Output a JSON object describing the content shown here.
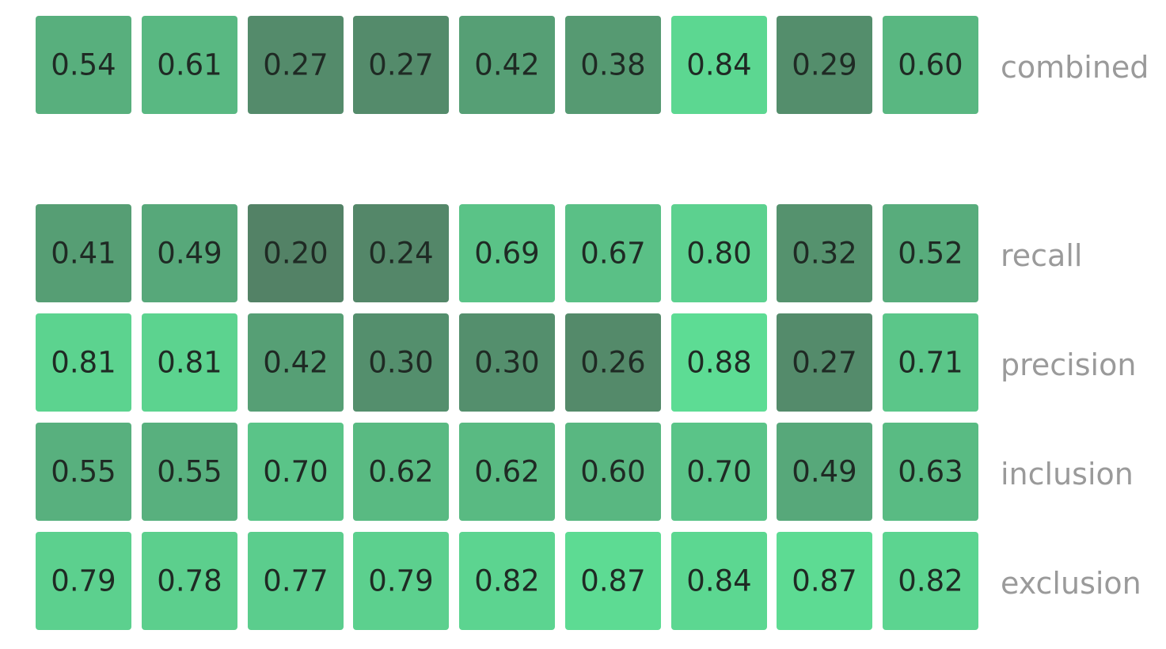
{
  "chart_data": {
    "type": "heatmap",
    "rows": [
      "combined",
      "recall",
      "precision",
      "inclusion",
      "exclusion"
    ],
    "columns": 9,
    "values": [
      [
        0.54,
        0.61,
        0.27,
        0.27,
        0.42,
        0.38,
        0.84,
        0.29,
        0.6
      ],
      [
        0.41,
        0.49,
        0.2,
        0.24,
        0.69,
        0.67,
        0.8,
        0.32,
        0.52
      ],
      [
        0.81,
        0.81,
        0.42,
        0.3,
        0.3,
        0.26,
        0.88,
        0.27,
        0.71
      ],
      [
        0.55,
        0.55,
        0.7,
        0.62,
        0.62,
        0.6,
        0.7,
        0.49,
        0.63
      ],
      [
        0.79,
        0.78,
        0.77,
        0.79,
        0.82,
        0.87,
        0.84,
        0.87,
        0.82
      ]
    ],
    "value_range": [
      0.2,
      0.88
    ],
    "color_low": "#538266",
    "color_high": "#5ddc94",
    "text_color": "#1f2a24",
    "label_color": "#9a9a9a",
    "grid": false,
    "legend": "none"
  }
}
